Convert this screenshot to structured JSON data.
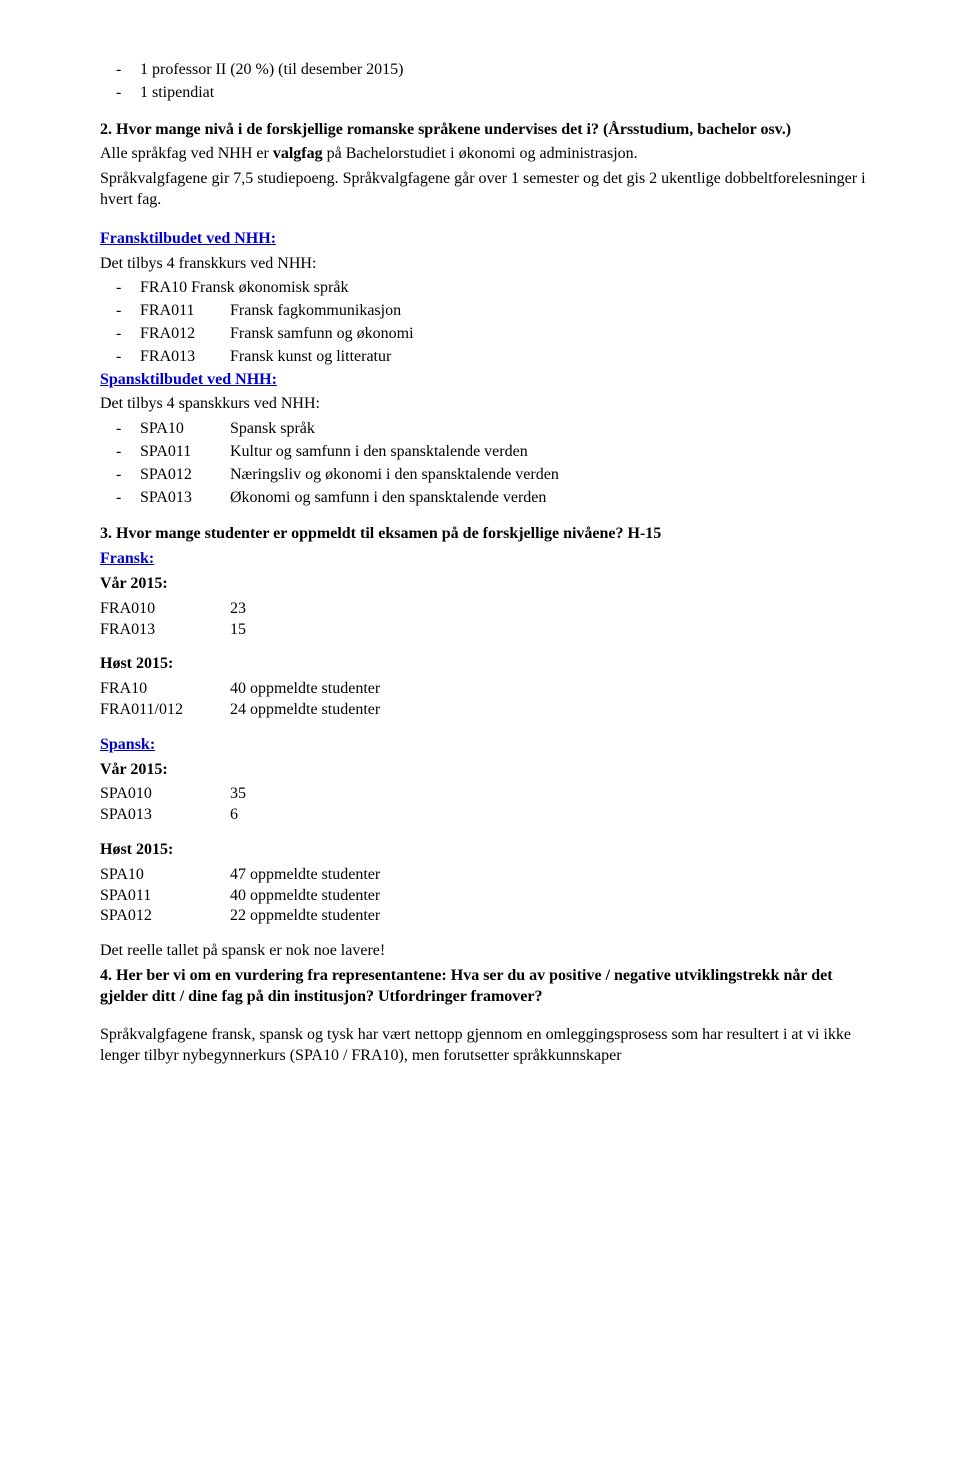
{
  "intro": {
    "staff": [
      "1 professor II (20 %) (til desember 2015)",
      "1 stipendiat"
    ],
    "q2_prefix": "2. Hvor mange nivå i de forskjellige romanske språkene undervises det i? (Årsstudium, bachelor osv.)",
    "q2_body_1": "Alle språkfag ved NHH er ",
    "q2_bold": "valgfag",
    "q2_body_2": " på Bachelorstudiet i økonomi og administrasjon.",
    "q2_body_3": "Språkvalgfagene gir 7,5 studiepoeng. Språkvalgfagene går over 1 semester og det gis 2 ukentlige dobbeltforelesninger i hvert fag."
  },
  "fransk": {
    "heading": "Fransktilbudet ved NHH:",
    "lead": "Det tilbys 4 franskkurs ved NHH:",
    "rows": [
      {
        "code": "FRA10",
        "text": "Fransk økonomisk språk",
        "pad": " "
      },
      {
        "code": "FRA011",
        "text": "Fransk fagkommunikasjon",
        "pad": ""
      },
      {
        "code": "FRA012",
        "text": "Fransk samfunn og økonomi",
        "pad": ""
      },
      {
        "code": "FRA013",
        "text": "Fransk kunst og litteratur",
        "pad": ""
      }
    ]
  },
  "spansk": {
    "heading": "Spansktilbudet ved NHH:",
    "lead": "Det tilbys 4 spanskkurs ved NHH:",
    "rows": [
      {
        "code": "SPA10",
        "text": "Spansk språk"
      },
      {
        "code": "SPA011",
        "text": "Kultur og samfunn i den spansktalende verden"
      },
      {
        "code": "SPA012",
        "text": "Næringsliv og økonomi i den    spansktalende verden"
      },
      {
        "code": "SPA013",
        "text": "Økonomi og samfunn i den spansktalende verden"
      }
    ]
  },
  "q3": {
    "heading": "3. Hvor mange studenter er oppmeldt til eksamen på de forskjellige nivåene? H-15",
    "fr_label": "Fransk:",
    "sp_label": "Spansk:",
    "vaar": "Vår 2015:",
    "host": "Høst 2015:",
    "fr_vaar": [
      {
        "label": "FRA010",
        "val": "23"
      },
      {
        "label": "FRA013",
        "val": "15"
      }
    ],
    "fr_host": [
      {
        "label": "FRA10",
        "val": "40 oppmeldte studenter"
      },
      {
        "label": "FRA011/012",
        "val": "24 oppmeldte studenter"
      }
    ],
    "sp_vaar": [
      {
        "label": "SPA010",
        "val": "35"
      },
      {
        "label": "SPA013",
        "val": "6"
      }
    ],
    "sp_host": [
      {
        "label": "SPA10",
        "val": "47 oppmeldte studenter"
      },
      {
        "label": "SPA011",
        "val": "40 oppmeldte studenter"
      },
      {
        "label": "SPA012",
        "val": "22 oppmeldte studenter"
      }
    ]
  },
  "tail": {
    "note": "Det reelle tallet på spansk er nok noe lavere!",
    "q4": "4. Her ber vi om en vurdering fra representantene: Hva ser du av positive / negative utviklingstrekk når det gjelder ditt / dine fag på din institusjon? Utfordringer framover?",
    "para": "Språkvalgfagene fransk, spansk og tysk har vært nettopp gjennom en omleggingsprosess som har resultert i at vi ikke lenger tilbyr nybegynnerkurs (SPA10 / FRA10), men forutsetter språkkunnskaper"
  }
}
